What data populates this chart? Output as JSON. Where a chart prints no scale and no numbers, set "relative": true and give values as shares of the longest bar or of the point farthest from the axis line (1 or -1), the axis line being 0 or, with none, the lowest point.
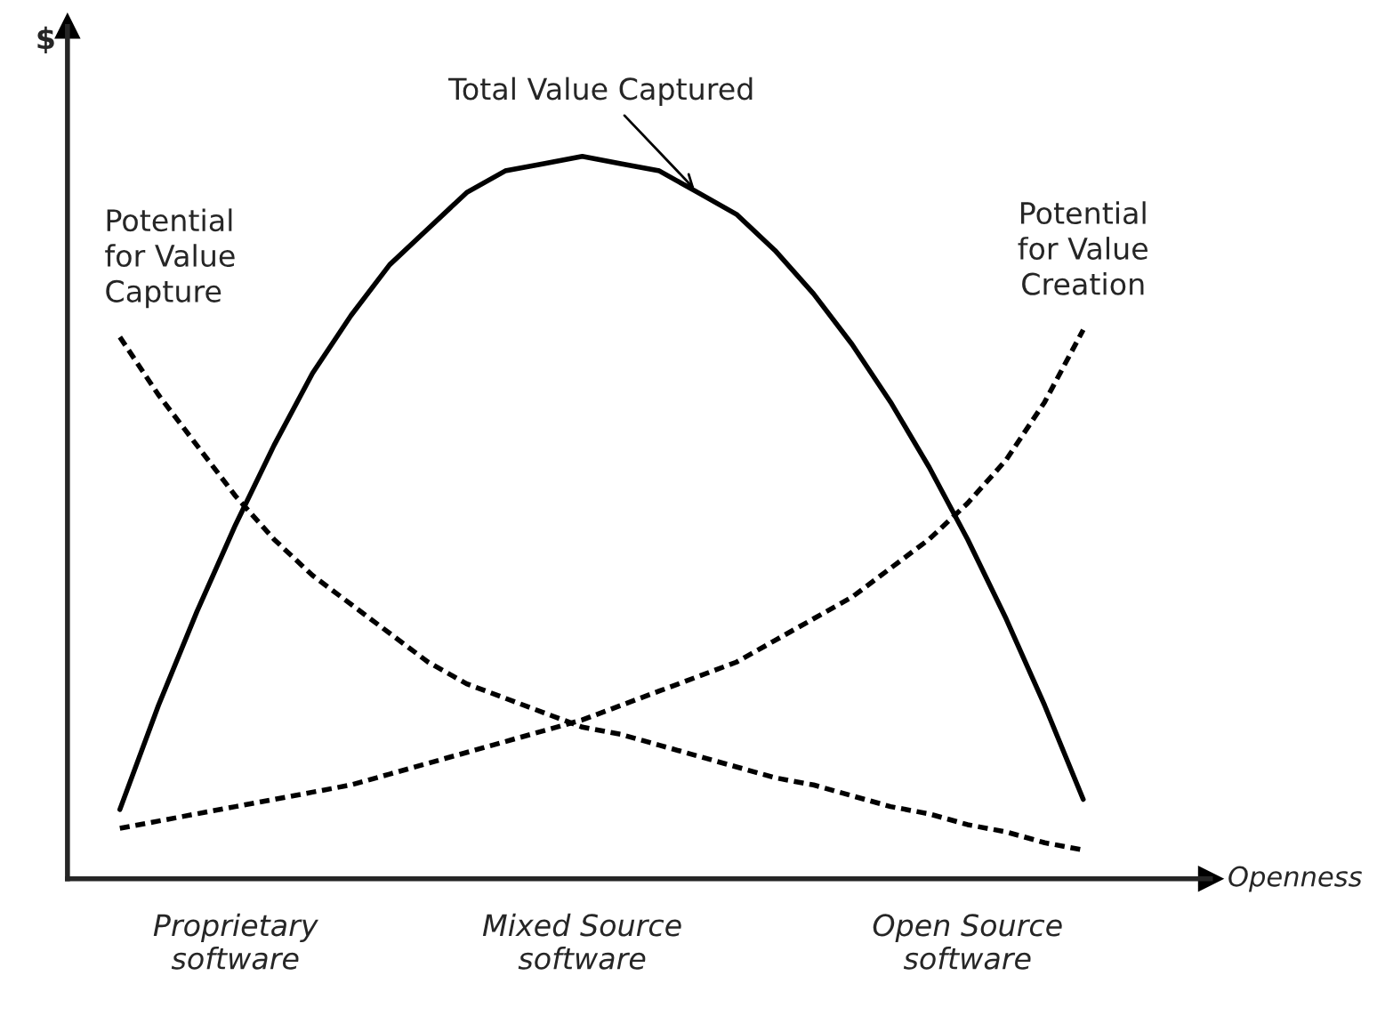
{
  "chart_data": {
    "type": "line",
    "relative": true,
    "xlabel": "Openness",
    "ylabel": "$",
    "categories": [
      null,
      null,
      null,
      "Proprietary\nsoftware",
      null,
      null,
      null,
      null,
      null,
      null,
      null,
      null,
      "Mixed Source\nsoftware",
      null,
      null,
      null,
      null,
      null,
      null,
      null,
      null,
      null,
      "Open Source\nsoftware",
      null,
      null,
      null
    ],
    "series": [
      {
        "name": "Total Value Captured",
        "color": "#000000",
        "line_style": "solid",
        "values": [
          0.096,
          0.24,
          0.37,
          0.49,
          0.6,
          0.7,
          0.78,
          0.85,
          0.9,
          0.95,
          0.98,
          0.99,
          1.0,
          0.99,
          0.98,
          0.95,
          0.92,
          0.87,
          0.81,
          0.74,
          0.66,
          0.57,
          0.47,
          0.36,
          0.24,
          0.11
        ]
      },
      {
        "name": "Potential for Value Capture",
        "color": "#000000",
        "line_style": "dashed",
        "values": [
          0.75,
          0.67,
          0.6,
          0.53,
          0.47,
          0.42,
          0.38,
          0.34,
          0.3,
          0.27,
          0.25,
          0.23,
          0.21,
          0.2,
          0.185,
          0.17,
          0.155,
          0.14,
          0.13,
          0.115,
          0.1,
          0.09,
          0.075,
          0.065,
          0.05,
          0.04
        ]
      },
      {
        "name": "Potential for Value Creation",
        "color": "#000000",
        "line_style": "dashed",
        "values": [
          0.07,
          0.08,
          0.09,
          0.1,
          0.11,
          0.12,
          0.13,
          0.145,
          0.16,
          0.175,
          0.19,
          0.205,
          0.22,
          0.24,
          0.26,
          0.28,
          0.3,
          0.33,
          0.36,
          0.39,
          0.43,
          0.47,
          0.52,
          0.58,
          0.66,
          0.76
        ]
      }
    ]
  }
}
